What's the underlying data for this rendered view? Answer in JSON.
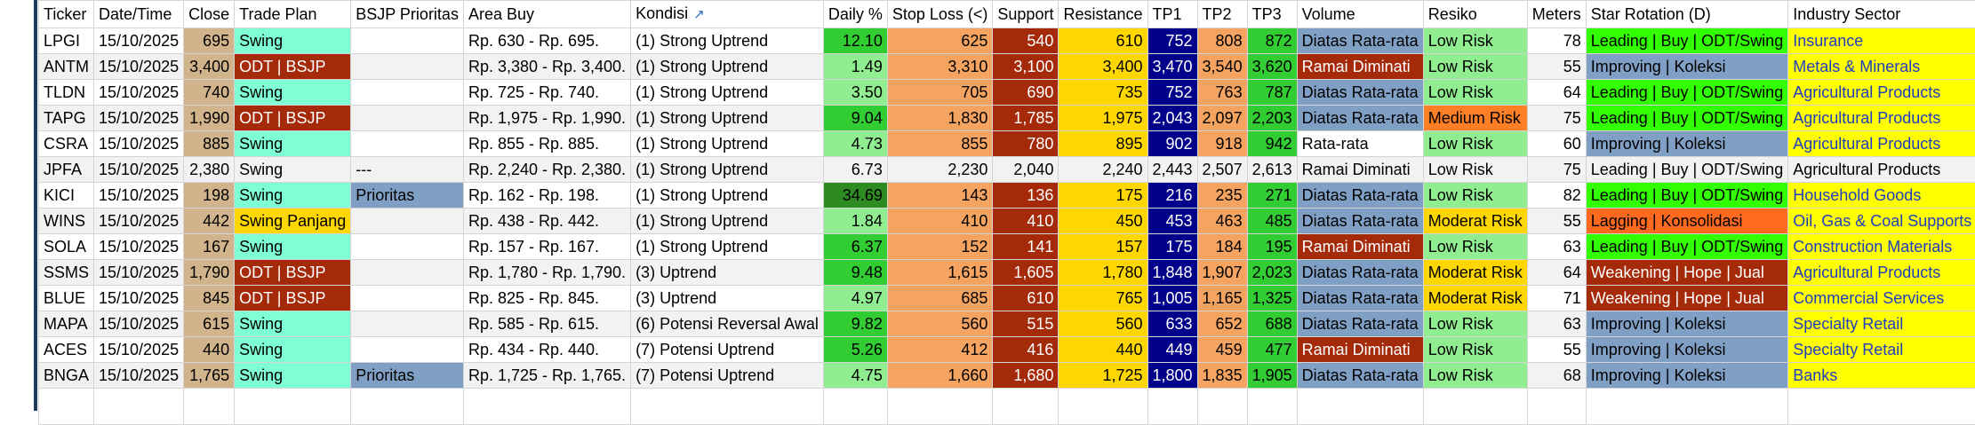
{
  "columns": [
    {
      "key": "ticker",
      "label": "Ticker",
      "align": "left"
    },
    {
      "key": "date",
      "label": "Date/Time",
      "align": "left"
    },
    {
      "key": "close",
      "label": "Close",
      "align": "right"
    },
    {
      "key": "plan",
      "label": "Trade Plan",
      "align": "left"
    },
    {
      "key": "bsjp",
      "label": "BSJP Prioritas",
      "align": "left"
    },
    {
      "key": "area",
      "label": "Area Buy",
      "align": "left"
    },
    {
      "key": "kondisi",
      "label": "Kondisi",
      "align": "left",
      "icon": "filter-icon"
    },
    {
      "key": "daily",
      "label": "Daily %",
      "align": "right"
    },
    {
      "key": "sl",
      "label": "Stop Loss (<)",
      "align": "right"
    },
    {
      "key": "support",
      "label": "Support",
      "align": "right"
    },
    {
      "key": "resistance",
      "label": "Resistance",
      "align": "right"
    },
    {
      "key": "tp1",
      "label": "TP1",
      "align": "right"
    },
    {
      "key": "tp2",
      "label": "TP2",
      "align": "right"
    },
    {
      "key": "tp3",
      "label": "TP3",
      "align": "right"
    },
    {
      "key": "volume",
      "label": "Volume",
      "align": "left"
    },
    {
      "key": "resiko",
      "label": "Resiko",
      "align": "left"
    },
    {
      "key": "meters",
      "label": "Meters",
      "align": "right"
    },
    {
      "key": "star",
      "label": "Star Rotation (D)",
      "align": "left"
    },
    {
      "key": "sector",
      "label": "Industry Sector",
      "align": "left"
    }
  ],
  "colors": {
    "closeBg": "#d2b48c",
    "planSwing": "#7fffd4",
    "planOdt": "#a52a0a",
    "planPanjang": "#ffd700",
    "bsjpBg": "#7f9fc4",
    "dailyLight": "#90ee90",
    "dailyBright": "#32cd32",
    "dailyDark": "#2e8b22",
    "stopLoss": "#f4a460",
    "support": "#a52a0a",
    "resistance": "#ffd700",
    "tp1": "#00008b",
    "tp2": "#f4a460",
    "tp3": "#32cd32",
    "volRataRata": "#7f9fc4",
    "volRamai": "#a52a0a",
    "riskLow": "#90ee90",
    "riskModerat": "#ffd700",
    "riskMedium": "#ff7f27",
    "starLeading": "#32ff00",
    "starImproving": "#7f9fc4",
    "starWeakening": "#a52a0a",
    "starLagging": "#ff6a20",
    "sectorBg": "#ffff00",
    "sectorText": "#1f3fbf",
    "rowGray": "#f2f2f2"
  },
  "rows": [
    {
      "ticker": "LPGI",
      "date": "15/10/2025",
      "close": "695",
      "plan": "Swing",
      "bsjp": "",
      "area": "Rp. 630 - Rp. 695.",
      "kondisi": "(1) Strong Uptrend",
      "daily": "12.10",
      "sl": "625",
      "support": "540",
      "resistance": "610",
      "tp1": "752",
      "tp2": "808",
      "tp3": "872",
      "volume": "Diatas Rata-rata",
      "resiko": "Low Risk",
      "meters": "78",
      "star": "Leading | Buy | ODT/Swing",
      "sector": "Insurance"
    },
    {
      "ticker": "ANTM",
      "date": "15/10/2025",
      "close": "3,400",
      "plan": "ODT | BSJP",
      "bsjp": "",
      "area": "Rp. 3,380 - Rp. 3,400.",
      "kondisi": "(1) Strong Uptrend",
      "daily": "1.49",
      "sl": "3,310",
      "support": "3,100",
      "resistance": "3,400",
      "tp1": "3,470",
      "tp2": "3,540",
      "tp3": "3,620",
      "volume": "Ramai Diminati",
      "resiko": "Low Risk",
      "meters": "55",
      "star": "Improving | Koleksi",
      "sector": "Metals & Minerals"
    },
    {
      "ticker": "TLDN",
      "date": "15/10/2025",
      "close": "740",
      "plan": "Swing",
      "bsjp": "",
      "area": "Rp. 725 - Rp. 740.",
      "kondisi": "(1) Strong Uptrend",
      "daily": "3.50",
      "sl": "705",
      "support": "690",
      "resistance": "735",
      "tp1": "752",
      "tp2": "763",
      "tp3": "787",
      "volume": "Diatas Rata-rata",
      "resiko": "Low Risk",
      "meters": "64",
      "star": "Leading | Buy | ODT/Swing",
      "sector": "Agricultural Products"
    },
    {
      "ticker": "TAPG",
      "date": "15/10/2025",
      "close": "1,990",
      "plan": "ODT | BSJP",
      "bsjp": "",
      "area": "Rp. 1,975 - Rp. 1,990.",
      "kondisi": "(1) Strong Uptrend",
      "daily": "9.04",
      "sl": "1,830",
      "support": "1,785",
      "resistance": "1,975",
      "tp1": "2,043",
      "tp2": "2,097",
      "tp3": "2,203",
      "volume": "Diatas Rata-rata",
      "resiko": "Medium Risk",
      "meters": "75",
      "star": "Leading | Buy | ODT/Swing",
      "sector": "Agricultural Products"
    },
    {
      "ticker": "CSRA",
      "date": "15/10/2025",
      "close": "885",
      "plan": "Swing",
      "bsjp": "",
      "area": "Rp. 855 - Rp. 885.",
      "kondisi": "(1) Strong Uptrend",
      "daily": "4.73",
      "sl": "855",
      "support": "780",
      "resistance": "895",
      "tp1": "902",
      "tp2": "918",
      "tp3": "942",
      "volume": "Rata-rata",
      "resiko": "Low Risk",
      "meters": "60",
      "star": "Improving | Koleksi",
      "sector": "Agricultural Products"
    },
    {
      "ticker": "JPFA",
      "date": "15/10/2025",
      "close": "2,380",
      "plan": "Swing",
      "bsjp": "---",
      "area": "Rp. 2,240 - Rp. 2,380.",
      "kondisi": "(1) Strong Uptrend",
      "daily": "6.73",
      "sl": "2,230",
      "support": "2,040",
      "resistance": "2,240",
      "tp1": "2,443",
      "tp2": "2,507",
      "tp3": "2,613",
      "volume": "Ramai Diminati",
      "resiko": "Low Risk",
      "meters": "75",
      "star": "Leading | Buy | ODT/Swing",
      "sector": "Agricultural Products",
      "plain": true
    },
    {
      "ticker": "KICI",
      "date": "15/10/2025",
      "close": "198",
      "plan": "Swing",
      "bsjp": "Prioritas",
      "area": "Rp. 162 - Rp. 198.",
      "kondisi": "(1) Strong Uptrend",
      "daily": "34.69",
      "sl": "143",
      "support": "136",
      "resistance": "175",
      "tp1": "216",
      "tp2": "235",
      "tp3": "271",
      "volume": "Diatas Rata-rata",
      "resiko": "Low Risk",
      "meters": "82",
      "star": "Leading | Buy | ODT/Swing",
      "sector": "Household Goods"
    },
    {
      "ticker": "WINS",
      "date": "15/10/2025",
      "close": "442",
      "plan": "Swing Panjang",
      "bsjp": "",
      "area": "Rp. 438 - Rp. 442.",
      "kondisi": "(1) Strong Uptrend",
      "daily": "1.84",
      "sl": "410",
      "support": "410",
      "resistance": "450",
      "tp1": "453",
      "tp2": "463",
      "tp3": "485",
      "volume": "Diatas Rata-rata",
      "resiko": "Moderat Risk",
      "meters": "55",
      "star": "Lagging | Konsolidasi",
      "sector": "Oil, Gas & Coal Supports"
    },
    {
      "ticker": "SOLA",
      "date": "15/10/2025",
      "close": "167",
      "plan": "Swing",
      "bsjp": "",
      "area": "Rp. 157 - Rp. 167.",
      "kondisi": "(1) Strong Uptrend",
      "daily": "6.37",
      "sl": "152",
      "support": "141",
      "resistance": "157",
      "tp1": "175",
      "tp2": "184",
      "tp3": "195",
      "volume": "Ramai Diminati",
      "resiko": "Low Risk",
      "meters": "63",
      "star": "Leading | Buy | ODT/Swing",
      "sector": "Construction Materials"
    },
    {
      "ticker": "SSMS",
      "date": "15/10/2025",
      "close": "1,790",
      "plan": "ODT | BSJP",
      "bsjp": "",
      "area": "Rp. 1,780 - Rp. 1,790.",
      "kondisi": "(3) Uptrend",
      "daily": "9.48",
      "sl": "1,615",
      "support": "1,605",
      "resistance": "1,780",
      "tp1": "1,848",
      "tp2": "1,907",
      "tp3": "2,023",
      "volume": "Diatas Rata-rata",
      "resiko": "Moderat Risk",
      "meters": "64",
      "star": "Weakening | Hope | Jual",
      "sector": "Agricultural Products"
    },
    {
      "ticker": "BLUE",
      "date": "15/10/2025",
      "close": "845",
      "plan": "ODT | BSJP",
      "bsjp": "",
      "area": "Rp. 825 - Rp. 845.",
      "kondisi": "(3) Uptrend",
      "daily": "4.97",
      "sl": "685",
      "support": "610",
      "resistance": "765",
      "tp1": "1,005",
      "tp2": "1,165",
      "tp3": "1,325",
      "volume": "Diatas Rata-rata",
      "resiko": "Moderat Risk",
      "meters": "71",
      "star": "Weakening | Hope | Jual",
      "sector": "Commercial Services"
    },
    {
      "ticker": "MAPA",
      "date": "15/10/2025",
      "close": "615",
      "plan": "Swing",
      "bsjp": "",
      "area": "Rp. 585 - Rp. 615.",
      "kondisi": "(6) Potensi Reversal Awal",
      "daily": "9.82",
      "sl": "560",
      "support": "515",
      "resistance": "560",
      "tp1": "633",
      "tp2": "652",
      "tp3": "688",
      "volume": "Diatas Rata-rata",
      "resiko": "Low Risk",
      "meters": "63",
      "star": "Improving | Koleksi",
      "sector": "Specialty Retail"
    },
    {
      "ticker": "ACES",
      "date": "15/10/2025",
      "close": "440",
      "plan": "Swing",
      "bsjp": "",
      "area": "Rp. 434 - Rp. 440.",
      "kondisi": "(7) Potensi Uptrend",
      "daily": "5.26",
      "sl": "412",
      "support": "416",
      "resistance": "440",
      "tp1": "449",
      "tp2": "459",
      "tp3": "477",
      "volume": "Ramai Diminati",
      "resiko": "Low Risk",
      "meters": "55",
      "star": "Improving | Koleksi",
      "sector": "Specialty Retail"
    },
    {
      "ticker": "BNGA",
      "date": "15/10/2025",
      "close": "1,765",
      "plan": "Swing",
      "bsjp": "Prioritas",
      "area": "Rp. 1,725 - Rp. 1,765.",
      "kondisi": "(7) Potensi Uptrend",
      "daily": "4.75",
      "sl": "1,660",
      "support": "1,680",
      "resistance": "1,725",
      "tp1": "1,800",
      "tp2": "1,835",
      "tp3": "1,905",
      "volume": "Diatas Rata-rata",
      "resiko": "Low Risk",
      "meters": "68",
      "star": "Improving | Koleksi",
      "sector": "Banks"
    }
  ]
}
